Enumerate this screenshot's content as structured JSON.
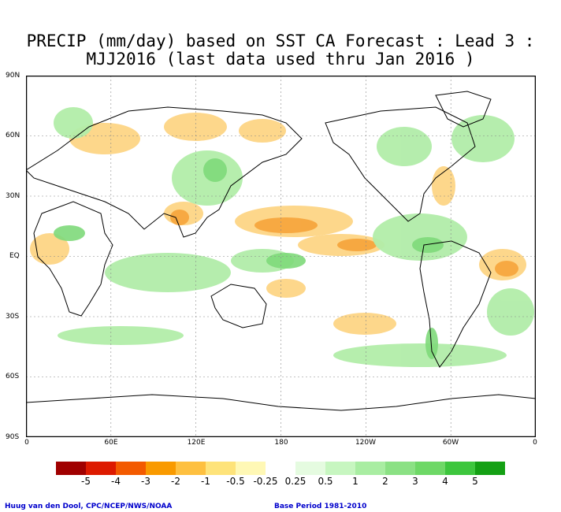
{
  "title_line1": "PRECIP (mm/day) based on SST CA Forecast : Lead 3 :",
  "title_line2": "MJJ2016 (last data used thru Jan 2016 )",
  "lat_labels": [
    "90N",
    "60N",
    "30N",
    "EQ",
    "30S",
    "60S",
    "90S"
  ],
  "lon_labels": [
    "0",
    "60E",
    "120E",
    "180",
    "120W",
    "60W",
    "0"
  ],
  "legend": {
    "colors": [
      "#a00000",
      "#dd1a00",
      "#f35a00",
      "#f99a00",
      "#fec040",
      "#fee37a",
      "#fff8b5",
      "#ffffff",
      "#e5fbe0",
      "#c7f6c0",
      "#a9eda2",
      "#8be184",
      "#6ed866",
      "#3dc63d",
      "#14a014"
    ],
    "labels": [
      "-5",
      "-4",
      "-3",
      "-2",
      "-1",
      "-0.5",
      "-0.25",
      "0.25",
      "0.5",
      "1",
      "2",
      "3",
      "4",
      "5"
    ]
  },
  "credit_left": "Huug van den Dool, CPC/NCEP/NWS/NOAA",
  "credit_right": "Base Period 1981-2010"
}
